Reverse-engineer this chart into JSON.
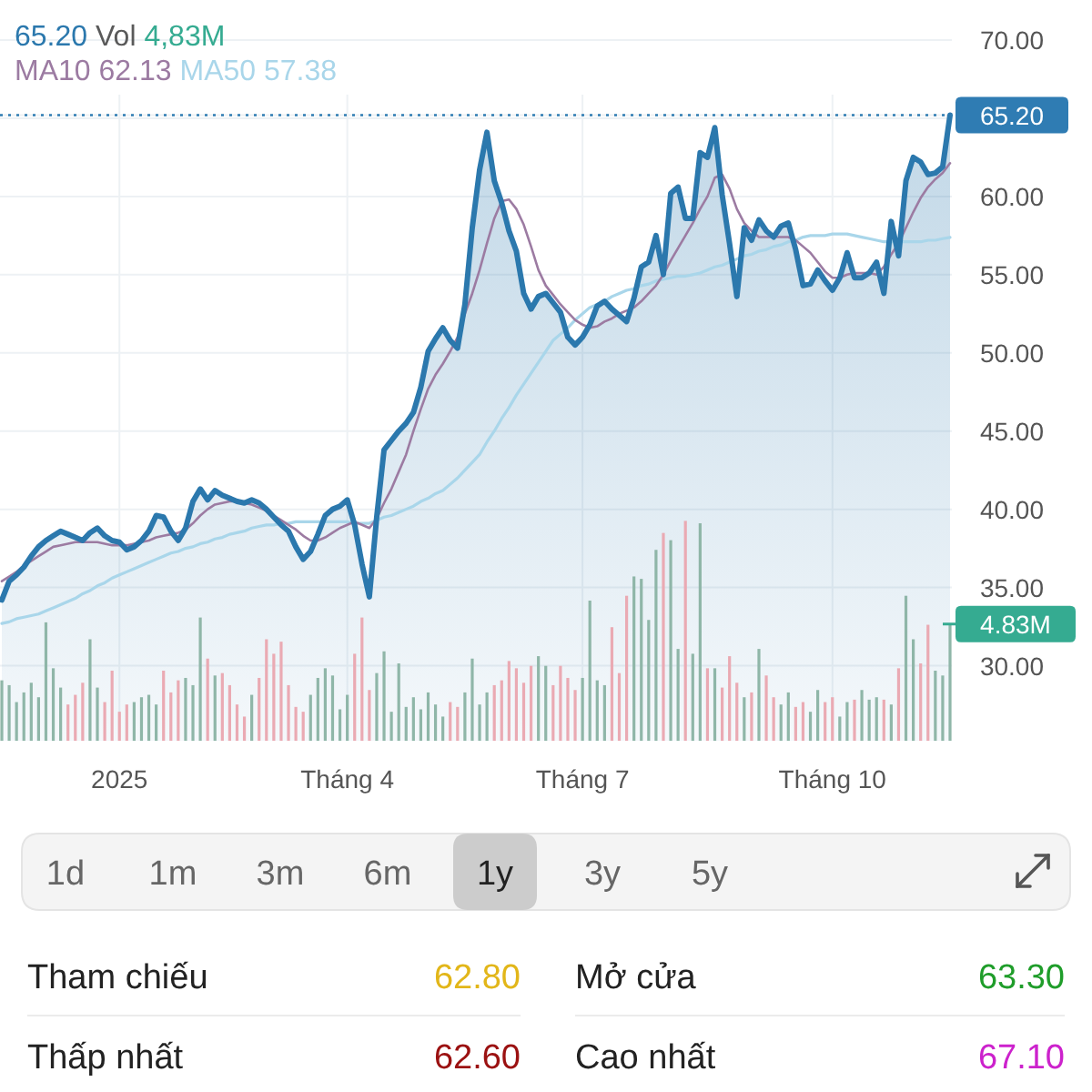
{
  "chart_data": [
    {
      "type": "line",
      "legend": "top left",
      "grid": true,
      "y2label": "Vol",
      "categories": [
        null,
        null,
        null,
        null,
        null,
        null,
        null,
        null,
        null,
        null,
        null,
        null,
        null,
        null,
        null,
        null,
        "2025",
        null,
        null,
        null,
        null,
        null,
        null,
        null,
        null,
        null,
        null,
        null,
        null,
        null,
        null,
        null,
        null,
        null,
        null,
        null,
        null,
        null,
        null,
        null,
        null,
        null,
        null,
        null,
        null,
        null,
        null,
        "Tháng 4",
        null,
        null,
        null,
        null,
        null,
        null,
        null,
        null,
        null,
        null,
        null,
        null,
        null,
        null,
        null,
        null,
        null,
        null,
        null,
        null,
        null,
        null,
        null,
        null,
        null,
        null,
        null,
        null,
        null,
        null,
        null,
        "Tháng 7",
        null,
        null,
        null,
        null,
        null,
        null,
        null,
        null,
        null,
        null,
        null,
        null,
        null,
        null,
        null,
        null,
        null,
        null,
        null,
        null,
        null,
        null,
        null,
        null,
        null,
        null,
        null,
        null,
        null,
        null,
        null,
        null,
        null,
        "Tháng 10",
        null,
        null,
        null,
        null,
        null,
        null,
        null,
        null,
        null,
        null,
        null,
        null,
        null,
        null,
        null,
        null
      ],
      "ylim": [
        25.2,
        70
      ],
      "yticks": [
        {
          "value": 30,
          "label": "30.00"
        },
        {
          "value": 35,
          "label": "35.00"
        },
        {
          "value": 40,
          "label": "40.00"
        },
        {
          "value": 45,
          "label": "45.00"
        },
        {
          "value": 50,
          "label": "50.00"
        },
        {
          "value": 55,
          "label": "55.00"
        },
        {
          "value": 60,
          "label": "60.00"
        },
        {
          "value": 65,
          "label": null
        },
        {
          "value": 65.2,
          "label": "65.20"
        },
        {
          "value": 70,
          "label": "70.00"
        }
      ],
      "y2lim": [
        0,
        29
      ],
      "y2ticks": [
        {
          "value": 4.83,
          "label": "4.83M"
        }
      ],
      "ref_lines": [
        {
          "axis": "y",
          "value": 65.2,
          "color": "#2f7cb3",
          "line_style": "dotted"
        }
      ],
      "annotations": [
        "65.20",
        "4,83M",
        "62.13",
        "57.38"
      ],
      "series": [
        {
          "type": "area",
          "color": "#2b78ad",
          "values": [
            34.2,
            35.4,
            35.8,
            36.3,
            37.0,
            37.6,
            38.0,
            38.3,
            38.6,
            38.4,
            38.2,
            38.0,
            38.5,
            38.8,
            38.3,
            38.0,
            37.9,
            37.4,
            37.6,
            38.0,
            38.6,
            39.6,
            39.5,
            38.6,
            38.0,
            38.8,
            40.5,
            41.3,
            40.6,
            41.2,
            40.9,
            40.7,
            40.5,
            40.4,
            40.6,
            40.4,
            40.0,
            39.5,
            39.0,
            38.6,
            37.6,
            36.8,
            37.3,
            38.4,
            39.6,
            40.0,
            40.2,
            40.6,
            39.0,
            36.5,
            34.4,
            39.5,
            43.8,
            44.4,
            45.0,
            45.5,
            46.2,
            47.8,
            50.1,
            50.9,
            51.6,
            50.8,
            50.3,
            53.1,
            58.0,
            61.7,
            64.1,
            61.0,
            59.6,
            57.8,
            56.5,
            53.8,
            52.8,
            53.6,
            53.8,
            53.2,
            52.6,
            51.0,
            50.5,
            51.0,
            51.8,
            53.0,
            53.3,
            52.8,
            52.4,
            52.0,
            53.5,
            55.5,
            55.8,
            57.5,
            55.0,
            60.2,
            60.6,
            58.6,
            58.6,
            62.8,
            62.5,
            64.4,
            60.1,
            57.0,
            53.6,
            58.0,
            57.2,
            58.5,
            57.8,
            57.4,
            58.1,
            58.3,
            56.6,
            54.3,
            54.4,
            55.3,
            54.6,
            54.0,
            54.8,
            56.4,
            54.8,
            54.8,
            55.1,
            55.8,
            53.8,
            58.4,
            56.2,
            61.0,
            62.5,
            62.2,
            61.4,
            61.5,
            61.9,
            65.2
          ]
        },
        {
          "type": "bar",
          "axis": "y2",
          "color": "#35ab91",
          "values": [
            2.5,
            2.3,
            1.6,
            2.0,
            2.4,
            1.8,
            4.9,
            3.0,
            2.2,
            1.5,
            1.9,
            2.4,
            4.2,
            2.2,
            1.6,
            2.9,
            1.2,
            1.5,
            1.6,
            1.8,
            1.9,
            1.5,
            2.9,
            2.0,
            2.5,
            2.6,
            2.3,
            5.1,
            3.4,
            2.7,
            2.8,
            2.3,
            1.5,
            1.0,
            1.9,
            2.6,
            4.2,
            3.6,
            4.1,
            2.3,
            1.4,
            1.2,
            1.9,
            2.6,
            3.0,
            2.7,
            1.3,
            1.9,
            3.6,
            5.1,
            2.1,
            2.8,
            3.7,
            1.2,
            3.2,
            1.4,
            1.8,
            1.3,
            2.0,
            1.5,
            1.0,
            1.6,
            1.4,
            2.0,
            3.4,
            1.5,
            2.0,
            2.3,
            2.5,
            3.3,
            3.0,
            2.4,
            3.1,
            3.5,
            3.1,
            2.3,
            3.1,
            2.6,
            2.1,
            2.6,
            5.8,
            2.5,
            2.3,
            4.7,
            2.8,
            6.0,
            6.8,
            6.7,
            5.0,
            7.9,
            8.6,
            8.3,
            3.8,
            9.1,
            3.6,
            9.0,
            3.0,
            3.0,
            2.2,
            3.5,
            2.4,
            1.8,
            2.0,
            3.8,
            2.7,
            1.8,
            1.5,
            2.0,
            1.4,
            1.6,
            1.2,
            2.1,
            1.6,
            1.8,
            1.0,
            1.6,
            1.7,
            2.1,
            1.7,
            1.8,
            1.7,
            1.5,
            3.0,
            6.0,
            4.2,
            3.2,
            4.8,
            2.9,
            2.7,
            4.83
          ],
          "colors": [
            "#8fb6a8",
            "#8fb6a8",
            "#8fb6a8",
            "#8fb6a8",
            "#8fb6a8",
            "#8fb6a8",
            "#8fb6a8",
            "#8fb6a8",
            "#8fb6a8",
            "#eaaab3",
            "#eaaab3",
            "#eaaab3",
            "#8fb6a8",
            "#8fb6a8",
            "#eaaab3",
            "#eaaab3",
            "#eaaab3",
            "#eaaab3",
            "#8fb6a8",
            "#8fb6a8",
            "#8fb6a8",
            "#8fb6a8",
            "#eaaab3",
            "#eaaab3",
            "#eaaab3",
            "#8fb6a8",
            "#8fb6a8",
            "#8fb6a8",
            "#eaaab3",
            "#8fb6a8",
            "#eaaab3",
            "#eaaab3",
            "#eaaab3",
            "#eaaab3",
            "#8fb6a8",
            "#eaaab3",
            "#eaaab3",
            "#eaaab3",
            "#eaaab3",
            "#eaaab3",
            "#eaaab3",
            "#eaaab3",
            "#8fb6a8",
            "#8fb6a8",
            "#8fb6a8",
            "#8fb6a8",
            "#8fb6a8",
            "#8fb6a8",
            "#eaaab3",
            "#eaaab3",
            "#eaaab3",
            "#8fb6a8",
            "#8fb6a8",
            "#8fb6a8",
            "#8fb6a8",
            "#8fb6a8",
            "#8fb6a8",
            "#8fb6a8",
            "#8fb6a8",
            "#8fb6a8",
            "#8fb6a8",
            "#eaaab3",
            "#eaaab3",
            "#8fb6a8",
            "#8fb6a8",
            "#8fb6a8",
            "#8fb6a8",
            "#eaaab3",
            "#eaaab3",
            "#eaaab3",
            "#eaaab3",
            "#eaaab3",
            "#eaaab3",
            "#8fb6a8",
            "#8fb6a8",
            "#eaaab3",
            "#eaaab3",
            "#eaaab3",
            "#eaaab3",
            "#8fb6a8",
            "#8fb6a8",
            "#8fb6a8",
            "#8fb6a8",
            "#eaaab3",
            "#eaaab3",
            "#eaaab3",
            "#8fb6a8",
            "#8fb6a8",
            "#8fb6a8",
            "#8fb6a8",
            "#eaaab3",
            "#8fb6a8",
            "#8fb6a8",
            "#eaaab3",
            "#8fb6a8",
            "#8fb6a8",
            "#eaaab3",
            "#8fb6a8",
            "#eaaab3",
            "#eaaab3",
            "#eaaab3",
            "#8fb6a8",
            "#eaaab3",
            "#8fb6a8",
            "#eaaab3",
            "#eaaab3",
            "#8fb6a8",
            "#8fb6a8",
            "#eaaab3",
            "#eaaab3",
            "#8fb6a8",
            "#8fb6a8",
            "#eaaab3",
            "#eaaab3",
            "#8fb6a8",
            "#8fb6a8",
            "#eaaab3",
            "#8fb6a8",
            "#8fb6a8",
            "#8fb6a8",
            "#eaaab3",
            "#8fb6a8",
            "#eaaab3",
            "#8fb6a8",
            "#8fb6a8",
            "#eaaab3",
            "#eaaab3",
            "#8fb6a8",
            "#8fb6a8",
            "#8fb6a8"
          ]
        },
        {
          "name": "MA10",
          "color": "#9c7ba2",
          "values": [
            35.4,
            35.7,
            36.0,
            36.4,
            36.7,
            37.0,
            37.3,
            37.6,
            37.7,
            37.8,
            37.9,
            37.9,
            37.9,
            37.9,
            37.8,
            37.7,
            37.7,
            37.7,
            37.8,
            37.9,
            38.0,
            38.2,
            38.3,
            38.4,
            38.5,
            38.7,
            39.1,
            39.6,
            40.0,
            40.3,
            40.4,
            40.5,
            40.5,
            40.4,
            40.3,
            40.1,
            39.9,
            39.6,
            39.3,
            39.0,
            38.7,
            38.3,
            38.0,
            38.0,
            38.2,
            38.5,
            38.8,
            39.0,
            39.2,
            39.0,
            38.8,
            39.4,
            40.4,
            41.3,
            42.4,
            43.5,
            45.0,
            46.4,
            47.7,
            48.6,
            49.3,
            50.1,
            51.0,
            52.5,
            53.8,
            55.3,
            57.0,
            58.6,
            59.7,
            59.8,
            59.2,
            58.2,
            56.8,
            55.3,
            54.3,
            53.7,
            53.1,
            52.6,
            52.1,
            51.8,
            51.6,
            51.7,
            52.0,
            52.2,
            52.5,
            52.7,
            52.9,
            53.3,
            53.8,
            54.3,
            55.0,
            55.9,
            56.7,
            57.5,
            58.3,
            59.2,
            60.0,
            61.2,
            61.4,
            60.5,
            59.2,
            58.3,
            57.8,
            57.4,
            57.4,
            57.4,
            57.4,
            57.4,
            57.2,
            56.8,
            56.4,
            55.8,
            55.2,
            54.8,
            54.8,
            55.0,
            55.1,
            55.1,
            55.1,
            55.0,
            55.5,
            56.3,
            57.0,
            58.0,
            59.0,
            59.9,
            60.6,
            61.1,
            61.5,
            62.13
          ]
        },
        {
          "name": "MA50",
          "color": "#a9d6ea",
          "values": [
            32.7,
            32.8,
            33.0,
            33.1,
            33.2,
            33.3,
            33.5,
            33.7,
            33.9,
            34.1,
            34.3,
            34.6,
            34.8,
            35.1,
            35.3,
            35.6,
            35.8,
            36.0,
            36.2,
            36.4,
            36.6,
            36.8,
            37.0,
            37.2,
            37.3,
            37.5,
            37.6,
            37.8,
            37.9,
            38.1,
            38.2,
            38.4,
            38.5,
            38.6,
            38.8,
            38.9,
            39.0,
            39.0,
            39.1,
            39.1,
            39.2,
            39.2,
            39.2,
            39.2,
            39.2,
            39.2,
            39.2,
            39.2,
            39.1,
            39.1,
            39.1,
            39.3,
            39.5,
            39.6,
            39.8,
            40.0,
            40.2,
            40.5,
            40.7,
            41.0,
            41.2,
            41.6,
            42.0,
            42.5,
            43.0,
            43.5,
            44.3,
            45.0,
            45.8,
            46.5,
            47.3,
            48.0,
            48.7,
            49.4,
            50.1,
            50.8,
            51.2,
            51.6,
            52.1,
            52.5,
            52.9,
            53.1,
            53.3,
            53.6,
            53.8,
            54.0,
            54.1,
            54.3,
            54.4,
            54.6,
            54.7,
            54.8,
            54.9,
            54.9,
            55.0,
            55.1,
            55.3,
            55.5,
            55.6,
            55.8,
            56.0,
            56.2,
            56.3,
            56.5,
            56.6,
            56.8,
            56.9,
            57.1,
            57.2,
            57.4,
            57.5,
            57.5,
            57.5,
            57.6,
            57.6,
            57.6,
            57.5,
            57.4,
            57.3,
            57.2,
            57.1,
            57.1,
            57.1,
            57.1,
            57.1,
            57.1,
            57.2,
            57.2,
            57.3,
            57.38
          ]
        }
      ]
    },
    {
      "type": "other",
      "categories": [
        "1d",
        "1m",
        "3m",
        "6m",
        "1y",
        "3y",
        "5y"
      ],
      "colors": [
        null,
        null,
        null,
        null,
        "#cccccc",
        null,
        null
      ]
    },
    {
      "type": "other",
      "categories": [
        "Tham chiếu",
        "Thấp nhất"
      ],
      "value_labels": [
        "62.80",
        "62.60"
      ],
      "colors": [
        "#e2b619",
        "#9b1111"
      ]
    },
    {
      "type": "other",
      "categories": [
        "Mở cửa",
        "Cao nhất"
      ],
      "value_labels": [
        "63.30",
        "67.10"
      ],
      "colors": [
        "#1f9d2a",
        "#cc22cc"
      ]
    }
  ]
}
